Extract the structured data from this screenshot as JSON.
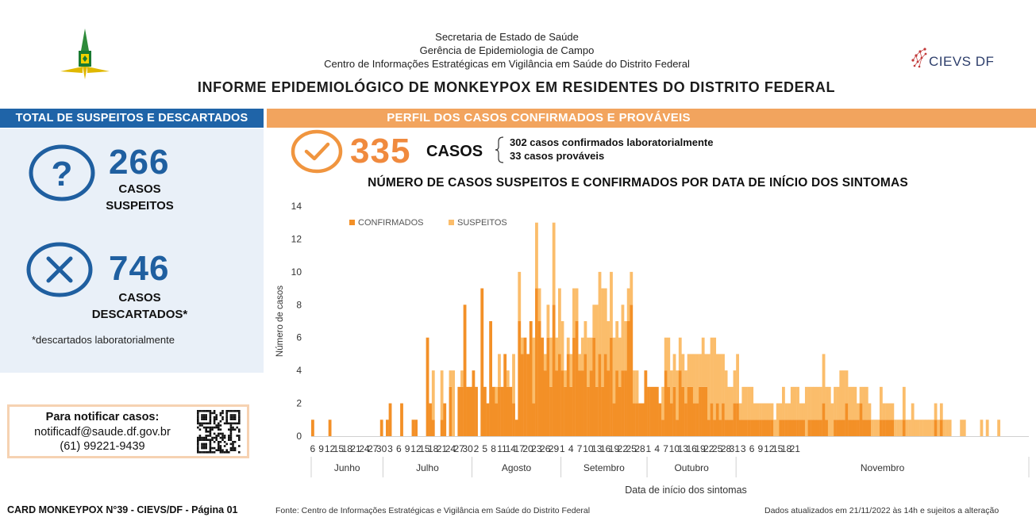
{
  "header": {
    "agency_line1": "Secretaria de Estado de Saúde",
    "agency_line2": "Gerência de Epidemiologia de Campo",
    "agency_line3": "Centro de Informações Estratégicas em Vigilância em Saúde do Distrito Federal",
    "logo_text": "CIEVS DF",
    "title": "INFORME EPIDEMIOLÓGICO DE MONKEYPOX EM RESIDENTES DO DISTRITO FEDERAL"
  },
  "left_panel": {
    "heading": "TOTAL DE SUSPEITOS E DESCARTADOS",
    "suspects": {
      "value": "266",
      "label_line1": "CASOS",
      "label_line2": "SUSPEITOS"
    },
    "discarded": {
      "value": "746",
      "label_line1": "CASOS",
      "label_line2": "DESCARTADOS*"
    },
    "footnote": "*descartados laboratorialmente"
  },
  "notify": {
    "title": "Para notificar casos:",
    "email": "notificadf@saude.df.gov.br",
    "phone": "(61) 99221-9439"
  },
  "right_panel": {
    "heading": "PERFIL DOS CASOS CONFIRMADOS E PROVÁVEIS",
    "total": "335",
    "total_label": "CASOS",
    "detail_line1": "302 casos confirmados laboratorialmente",
    "detail_line2": "33 casos prováveis"
  },
  "colors": {
    "confirmed": "#f39027",
    "suspected": "#fbbd6b",
    "blue": "#1f5fa0",
    "orange_accent": "#f08a3e"
  },
  "chart_data": {
    "type": "bar",
    "title": "NÚMERO DE CASOS SUSPEITOS E CONFIRMADOS POR DATA DE INÍCIO DOS SINTOMAS",
    "xlabel": "Data de início dos sintomas",
    "ylabel": "Número de casos",
    "ylim": [
      0,
      14
    ],
    "yticks": [
      0,
      2,
      4,
      6,
      8,
      10,
      12,
      14
    ],
    "stacked": true,
    "legend_position": "top-left",
    "start_date": "2022-06-06",
    "months": [
      "Junho",
      "Julho",
      "Agosto",
      "Setembro",
      "Outubro",
      "Novembro"
    ],
    "x_tick_labels": [
      "6",
      "9",
      "12",
      "15",
      "18",
      "21",
      "24",
      "27",
      "30",
      "3",
      "6",
      "9",
      "12",
      "15",
      "18",
      "21",
      "24",
      "27",
      "30",
      "2",
      "5",
      "8",
      "11",
      "14",
      "17",
      "20",
      "23",
      "26",
      "29",
      "1",
      "4",
      "7",
      "10",
      "13",
      "16",
      "19",
      "22",
      "25",
      "28",
      "1",
      "4",
      "7",
      "10",
      "13",
      "16",
      "19",
      "22",
      "25",
      "28",
      "31",
      "3",
      "6",
      "9",
      "12",
      "15",
      "18",
      "21"
    ],
    "series": [
      {
        "name": "CONFIRMADOS",
        "values": [
          1,
          0,
          0,
          0,
          0,
          0,
          1,
          0,
          0,
          0,
          0,
          0,
          0,
          0,
          0,
          0,
          0,
          0,
          0,
          0,
          0,
          0,
          0,
          0,
          1,
          0,
          1,
          2,
          0,
          0,
          0,
          2,
          0,
          0,
          0,
          1,
          1,
          0,
          0,
          0,
          6,
          2,
          1,
          0,
          0,
          1,
          2,
          0,
          3,
          0,
          0,
          3,
          3,
          8,
          3,
          3,
          4,
          3,
          0,
          9,
          3,
          2,
          7,
          3,
          2,
          3,
          3,
          5,
          3,
          3,
          2,
          1,
          7,
          5,
          6,
          5,
          7,
          2,
          9,
          7,
          6,
          4,
          6,
          3,
          8,
          4,
          5,
          4,
          3,
          5,
          3,
          6,
          7,
          4,
          4,
          5,
          3,
          4,
          6,
          3,
          5,
          3,
          5,
          4,
          6,
          2,
          4,
          3,
          4,
          4,
          7,
          8,
          2,
          2,
          2,
          2,
          4,
          3,
          3,
          3,
          3,
          2,
          1,
          4,
          3,
          2,
          3,
          1,
          4,
          3,
          2,
          3,
          3,
          2,
          2,
          3,
          3,
          3,
          1,
          2,
          1,
          2,
          1,
          2,
          1,
          1,
          1,
          2,
          2,
          1,
          1,
          1,
          1,
          1,
          1,
          1,
          1,
          1,
          1,
          1,
          1,
          0,
          0,
          1,
          1,
          1,
          1,
          1,
          1,
          1,
          1,
          1,
          0,
          1,
          1,
          1,
          1,
          1,
          2,
          1,
          0,
          0,
          1,
          1,
          1,
          1,
          2,
          1,
          1,
          1,
          1,
          2,
          1,
          1,
          1,
          0,
          0,
          0,
          1,
          1,
          1,
          1,
          1,
          0,
          0,
          0,
          1,
          0,
          0,
          0,
          0,
          0,
          0,
          0,
          0,
          0,
          0,
          1,
          0,
          1,
          0,
          0,
          0,
          0,
          0,
          0,
          0,
          0,
          0,
          0,
          0,
          0,
          0,
          0,
          0,
          0,
          0,
          0,
          0,
          0,
          0,
          0,
          0,
          0,
          0,
          0,
          0,
          0,
          0,
          0
        ]
      },
      {
        "name": "SUSPEITOS",
        "values": [
          0,
          0,
          0,
          0,
          0,
          0,
          0,
          0,
          0,
          0,
          0,
          0,
          0,
          0,
          0,
          0,
          0,
          0,
          0,
          0,
          0,
          0,
          0,
          0,
          0,
          0,
          0,
          0,
          0,
          0,
          0,
          0,
          0,
          0,
          0,
          0,
          0,
          0,
          0,
          0,
          0,
          0,
          3,
          0,
          0,
          3,
          0,
          0,
          1,
          4,
          0,
          0,
          1,
          0,
          0,
          0,
          0,
          0,
          0,
          0,
          0,
          0,
          0,
          0,
          1,
          2,
          0,
          0,
          1,
          0,
          3,
          0,
          3,
          1,
          0,
          0,
          0,
          4,
          4,
          2,
          0,
          1,
          2,
          3,
          5,
          2,
          4,
          3,
          1,
          1,
          2,
          3,
          2,
          1,
          2,
          2,
          3,
          2,
          2,
          5,
          5,
          6,
          4,
          3,
          4,
          4,
          3,
          3,
          4,
          3,
          2,
          2,
          2,
          2,
          0,
          0,
          0,
          0,
          0,
          0,
          0,
          0,
          2,
          2,
          3,
          2,
          2,
          3,
          2,
          2,
          2,
          2,
          2,
          3,
          3,
          2,
          3,
          2,
          4,
          4,
          5,
          3,
          4,
          3,
          3,
          2,
          2,
          2,
          3,
          1,
          2,
          2,
          2,
          2,
          1,
          1,
          1,
          1,
          1,
          1,
          1,
          1,
          2,
          1,
          2,
          1,
          1,
          2,
          2,
          2,
          1,
          1,
          3,
          2,
          2,
          2,
          2,
          2,
          3,
          2,
          3,
          2,
          2,
          2,
          3,
          3,
          2,
          2,
          2,
          2,
          1,
          1,
          2,
          2,
          1,
          1,
          1,
          1,
          2,
          1,
          1,
          1,
          1,
          1,
          1,
          1,
          2,
          1,
          1,
          2,
          1,
          1,
          1,
          1,
          1,
          1,
          1,
          1,
          1,
          1,
          1,
          1,
          1,
          0,
          0,
          0,
          1,
          1,
          0,
          0,
          0,
          0,
          0,
          1,
          0,
          1,
          0,
          0,
          0,
          1,
          0,
          0,
          0,
          0,
          0,
          0
        ]
      }
    ]
  },
  "footer": {
    "left": "CARD MONKEYPOX N°39 - CIEVS/DF - Página 01",
    "source": "Fonte: Centro de Informações Estratégicas e Vigilância em Saúde do Distrito Federal",
    "updated": "Dados atualizados em 21/11/2022 às 14h e sujeitos a alteração"
  }
}
